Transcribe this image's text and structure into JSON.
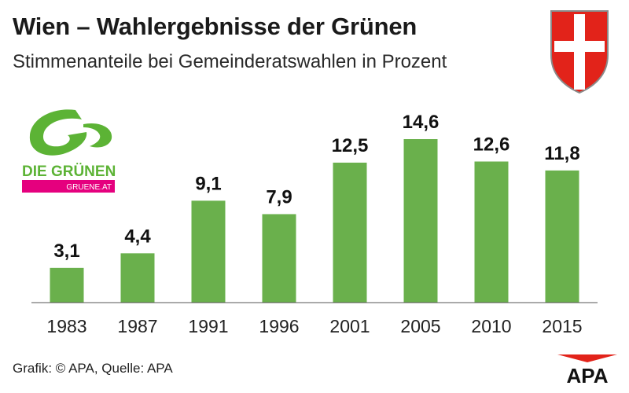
{
  "header": {
    "title": "Wien – Wahlergebnisse der Grünen",
    "subtitle": "Stimmenanteile bei Gemeinderatswahlen in Prozent"
  },
  "logo": {
    "name": "DIE GRÜNEN",
    "url": "GRUENE.AT",
    "icon": "gruene-logo",
    "color": "#5cb335",
    "accent": "#e5007e"
  },
  "crest": {
    "icon": "vienna-coat-of-arms",
    "color": "#e2231a"
  },
  "footer": {
    "credit": "Grafik: © APA, Quelle: APA"
  },
  "agency": {
    "name": "APA",
    "color": "#e2231a"
  },
  "chart_data": {
    "type": "bar",
    "categories": [
      "1983",
      "1987",
      "1991",
      "1996",
      "2001",
      "2005",
      "2010",
      "2015"
    ],
    "values": [
      3.1,
      4.4,
      9.1,
      7.9,
      12.5,
      14.6,
      12.6,
      11.8
    ],
    "value_labels": [
      "3,1",
      "4,4",
      "9,1",
      "7,9",
      "12,5",
      "14,6",
      "12,6",
      "11,8"
    ],
    "bar_color": "#6ab04c",
    "title": "Wien – Wahlergebnisse der Grünen",
    "subtitle": "Stimmenanteile bei Gemeinderatswahlen in Prozent",
    "xlabel": "",
    "ylabel": "",
    "ylim": [
      0,
      14.6
    ],
    "grid": false,
    "legend": "none"
  }
}
